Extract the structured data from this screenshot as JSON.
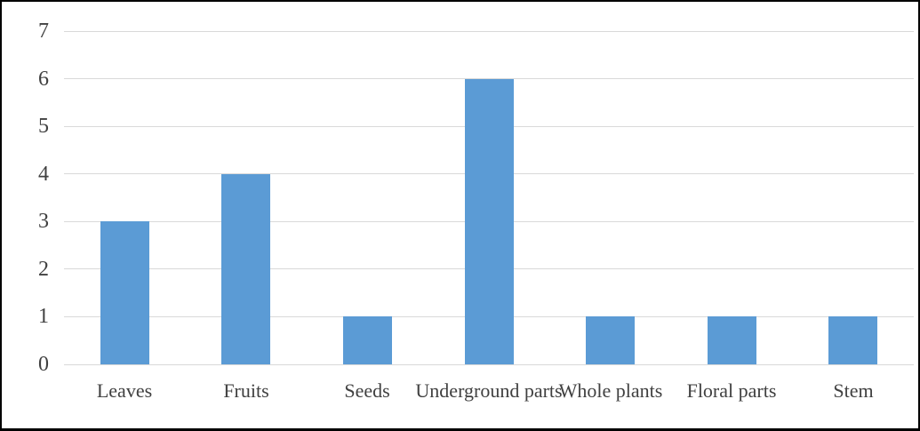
{
  "chart_data": {
    "type": "bar",
    "title": "",
    "categories": [
      "Leaves",
      "Fruits",
      "Seeds",
      "Underground parts",
      "Whole plants",
      "Floral parts",
      "Stem"
    ],
    "values": [
      3,
      4,
      1,
      6,
      1,
      1,
      1
    ],
    "xlabel": "",
    "ylabel": "",
    "ylim": [
      0,
      7
    ],
    "yticks": [
      0,
      1,
      2,
      3,
      4,
      5,
      6,
      7
    ],
    "ytick_labels": [
      "0",
      "1",
      "2",
      "3",
      "4",
      "5",
      "6",
      "7"
    ],
    "grid": true,
    "legend_position": "none",
    "bar_color": "#5B9BD5",
    "gridline_color": "#D9D9D9",
    "axis_text_color": "#404040",
    "frame_border_color": "#000000",
    "background_color": "#FFFFFF"
  }
}
